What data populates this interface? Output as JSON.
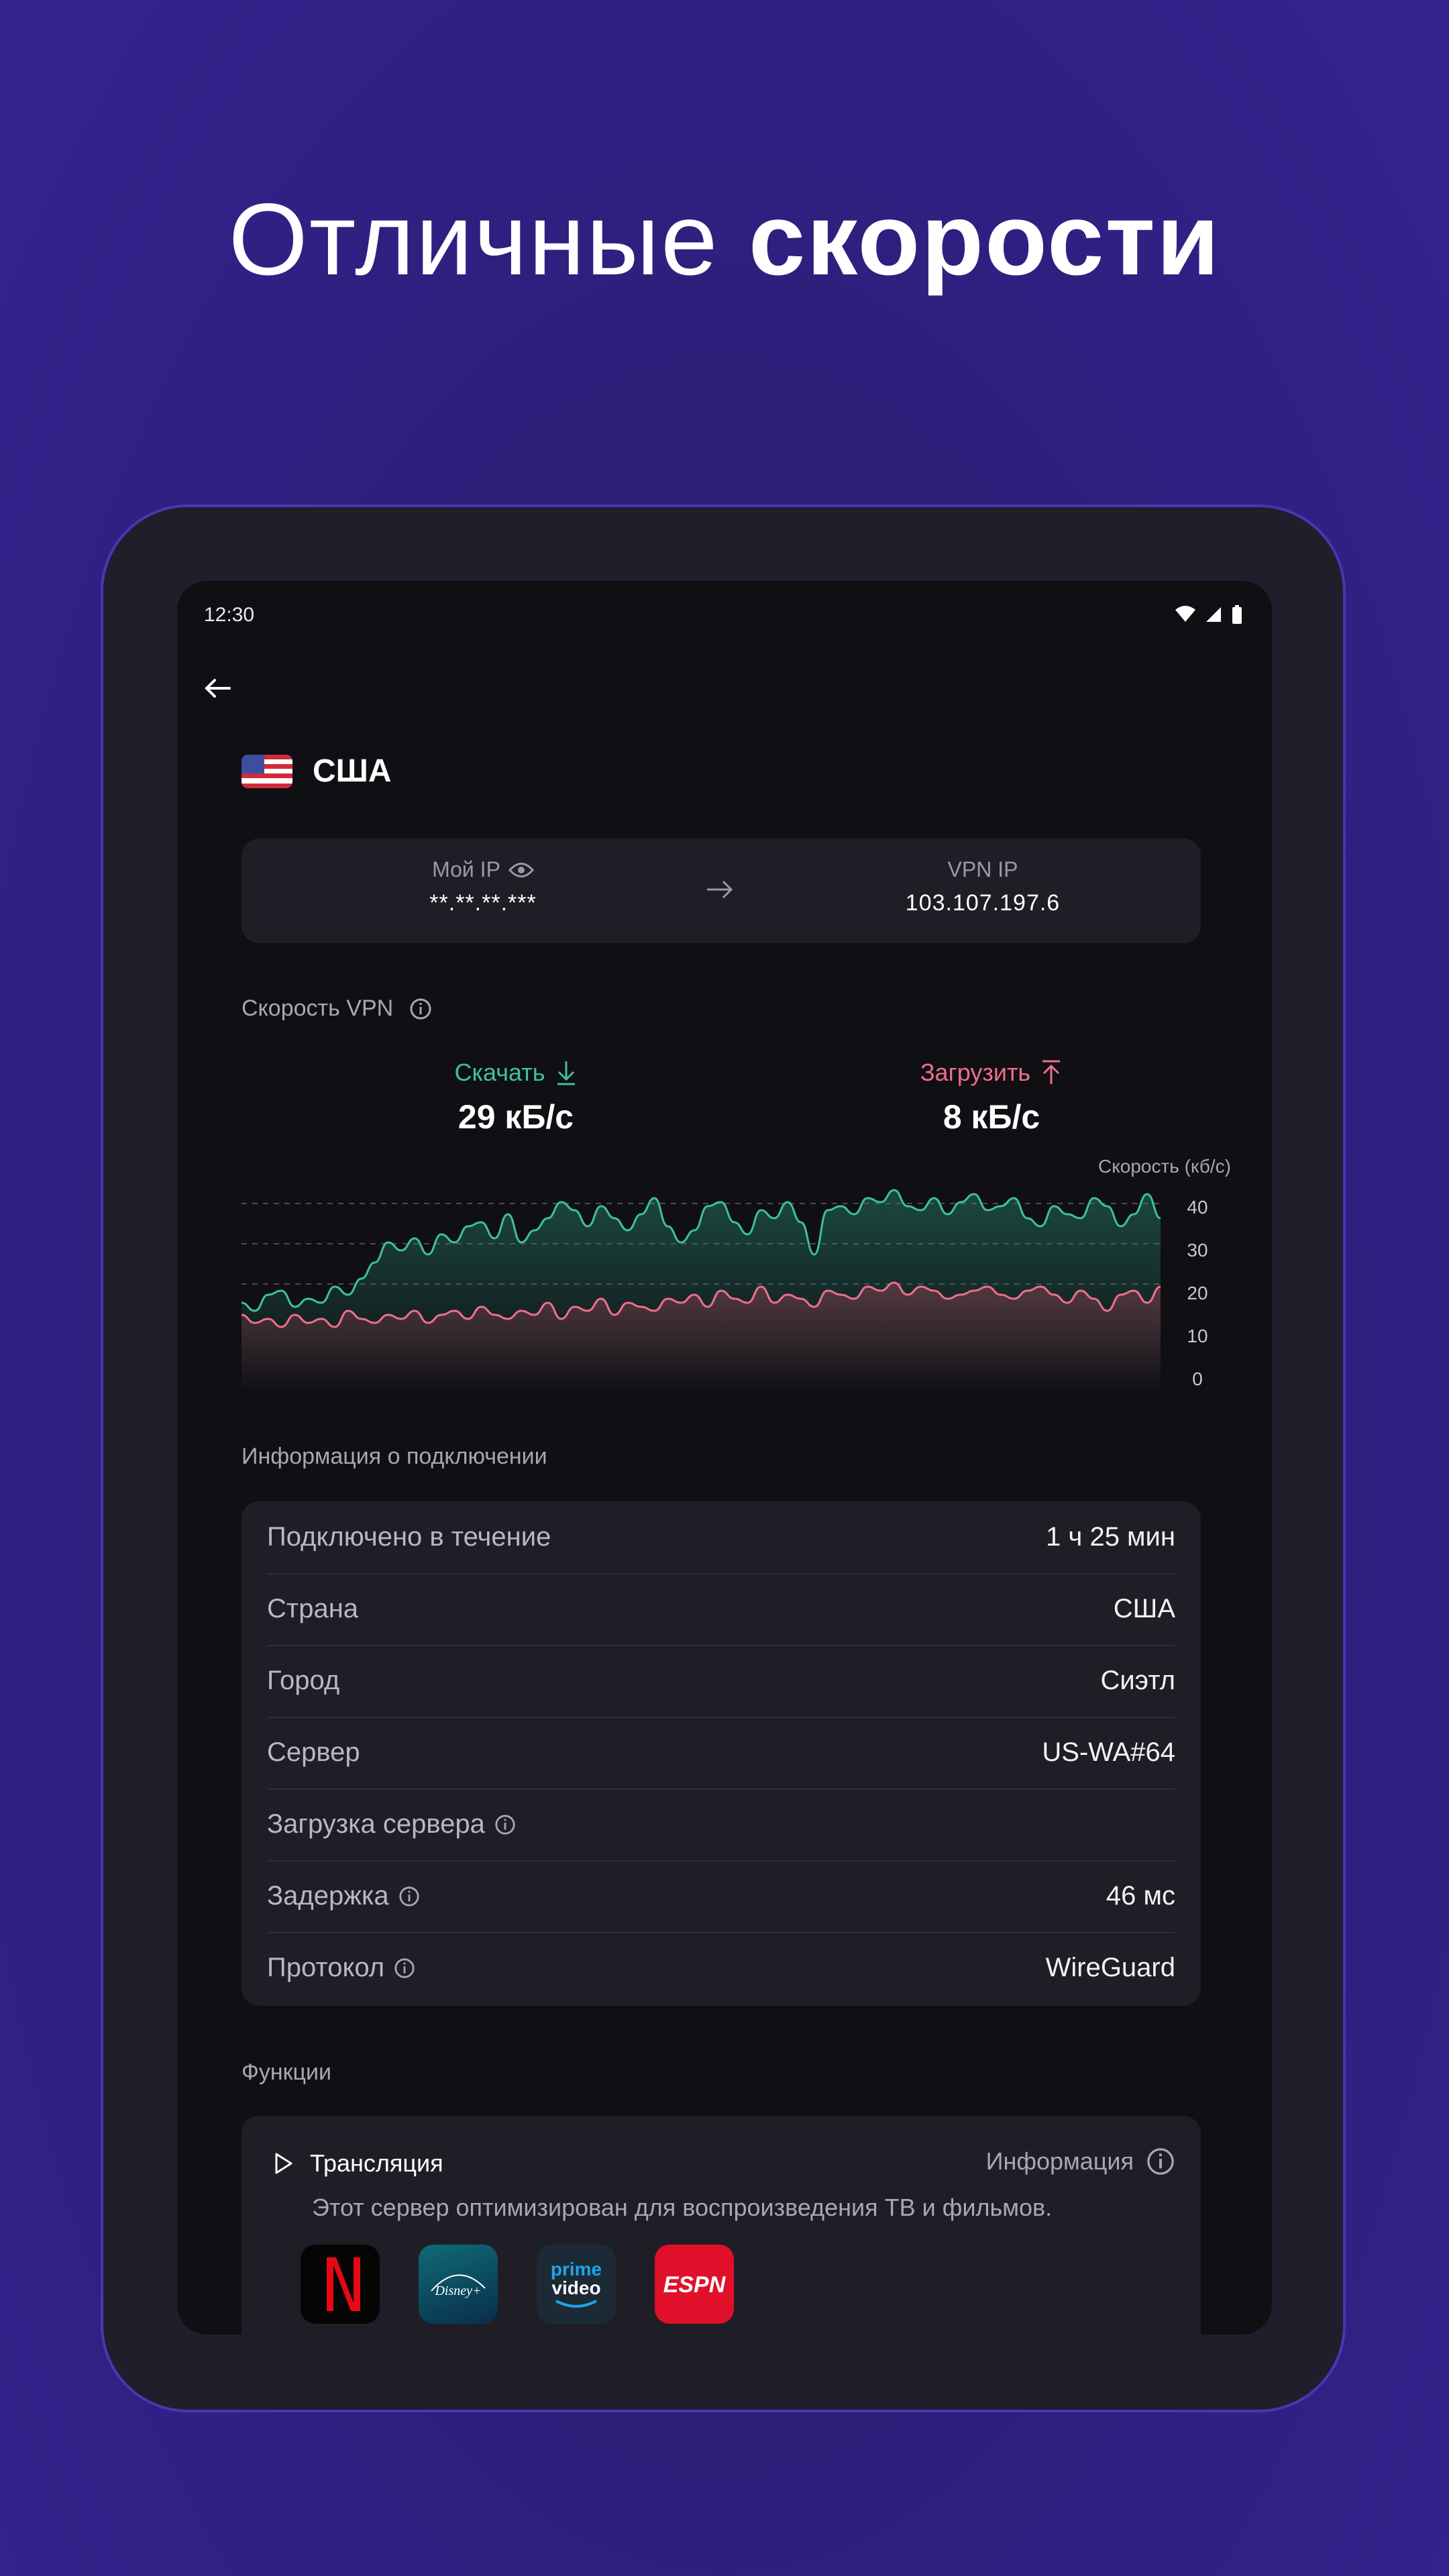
{
  "headline": {
    "light": "Отличные ",
    "bold": "скорости"
  },
  "status": {
    "time": "12:30"
  },
  "country": {
    "name": "США"
  },
  "ip": {
    "my_label": "Мой IP",
    "my_value": "**.**.**.***",
    "vpn_label": "VPN IP",
    "vpn_value": "103.107.197.6"
  },
  "speed": {
    "title": "Скорость VPN",
    "download_label": "Скачать",
    "download_value": "29 кБ/с",
    "upload_label": "Загрузить",
    "upload_value": "8 кБ/с"
  },
  "chart_data": {
    "type": "area",
    "ylabel": "Скорость (кб/с)",
    "yticks": [
      40,
      30,
      20,
      10,
      0
    ],
    "ylim": [
      0,
      40
    ],
    "series": [
      {
        "name": "Скачать",
        "color": "#3fc19a",
        "values": [
          12,
          10,
          14,
          15,
          11,
          13,
          12,
          16,
          14,
          18,
          22,
          27,
          25,
          28,
          24,
          29,
          27,
          31,
          32,
          28,
          34,
          27,
          30,
          33,
          37,
          35,
          31,
          36,
          33,
          30,
          34,
          38,
          31,
          27,
          30,
          36,
          37,
          32,
          29,
          35,
          33,
          37,
          32,
          24,
          35,
          36,
          34,
          38,
          37,
          40,
          36,
          35,
          38,
          34,
          37,
          39,
          35,
          36,
          38,
          33,
          31,
          36,
          34,
          33,
          38,
          36,
          31,
          34,
          39,
          33
        ]
      },
      {
        "name": "Загрузить",
        "color": "#ef6f8a",
        "values": [
          9,
          7,
          8,
          6,
          9,
          7,
          8,
          6,
          10,
          8,
          7,
          9,
          8,
          10,
          7,
          9,
          10,
          8,
          11,
          9,
          8,
          10,
          9,
          12,
          8,
          11,
          10,
          13,
          9,
          12,
          11,
          10,
          13,
          12,
          14,
          11,
          15,
          13,
          12,
          16,
          12,
          14,
          13,
          11,
          15,
          14,
          13,
          16,
          15,
          17,
          14,
          16,
          15,
          13,
          14,
          15,
          16,
          14,
          13,
          15,
          16,
          14,
          12,
          15,
          13,
          10,
          14,
          15,
          12,
          16
        ]
      }
    ]
  },
  "info": {
    "title": "Информация о подключении",
    "rows": [
      {
        "label": "Подключено в течение",
        "value": "1 ч 25 мин"
      },
      {
        "label": "Страна",
        "value": "США"
      },
      {
        "label": "Город",
        "value": "Сиэтл"
      },
      {
        "label": "Сервер",
        "value": "US-WA#64"
      },
      {
        "label": "Загрузка сервера",
        "value": ""
      },
      {
        "label": "Задержка",
        "value": "46 мс"
      },
      {
        "label": "Протокол",
        "value": "WireGuard"
      }
    ]
  },
  "functions": {
    "title": "Функции",
    "stream_title": "Трансляция",
    "info_label": "Информация",
    "desc": "Этот сервер оптимизирован для воспроизведения ТВ и фильмов.",
    "services": [
      "netflix-icon",
      "disney-plus-icon",
      "prime-video-icon",
      "espn-icon"
    ],
    "service_text": {
      "prime_top": "prime",
      "prime_bottom": "video",
      "espn": "ESPN",
      "disney": "Disney+"
    }
  }
}
